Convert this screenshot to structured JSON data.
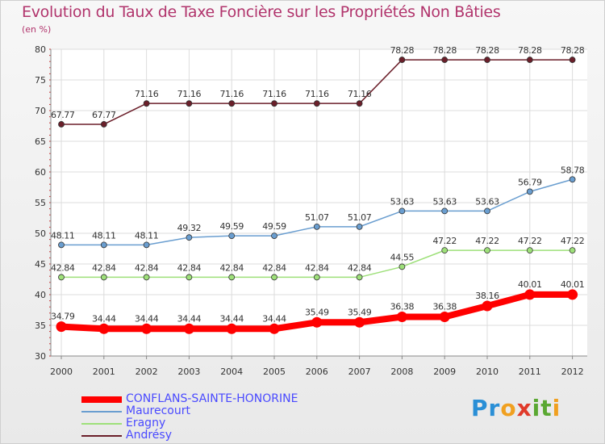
{
  "title": "Evolution du Taux de Taxe Foncière sur les Propriétés Non Bâties",
  "subtitle": "(en %)",
  "logo": {
    "text": "Proxiti",
    "letters": [
      {
        "char": "P",
        "color": "#2a8fd6"
      },
      {
        "char": "r",
        "color": "#2a8fd6"
      },
      {
        "char": "o",
        "color": "#f0a020"
      },
      {
        "char": "x",
        "color": "#e03a2a"
      },
      {
        "char": "i",
        "color": "#5aa832"
      },
      {
        "char": "t",
        "color": "#5aa832"
      },
      {
        "char": "i",
        "color": "#f0a020"
      }
    ]
  },
  "chart_data": {
    "type": "line",
    "title": "Evolution du Taux de Taxe Foncière sur les Propriétés Non Bâties",
    "ylabel": "(en %)",
    "xlabel": "",
    "x": [
      "2000",
      "2001",
      "2002",
      "2003",
      "2004",
      "2005",
      "2006",
      "2007",
      "2008",
      "2009",
      "2010",
      "2011",
      "2012"
    ],
    "ylim": [
      30,
      80
    ],
    "yticks": [
      "30",
      "35",
      "40",
      "45",
      "50",
      "55",
      "60",
      "65",
      "70",
      "75",
      "80"
    ],
    "grid": true,
    "legend_position": "bottom-left",
    "series": [
      {
        "name": "Andrésy",
        "color": "#6b1f2a",
        "values": [
          67.77,
          67.77,
          71.16,
          71.16,
          71.16,
          71.16,
          71.16,
          71.16,
          78.28,
          78.28,
          78.28,
          78.28,
          78.28
        ],
        "labels": [
          "67.77",
          "67.77",
          "71.16",
          "71.16",
          "71.16",
          "71.16",
          "71.16",
          "71.16",
          "78.28",
          "78.28",
          "78.28",
          "78.28",
          "78.28"
        ]
      },
      {
        "name": "Maurecourt",
        "color": "#6a9ed0",
        "values": [
          48.11,
          48.11,
          48.11,
          49.32,
          49.59,
          49.59,
          51.07,
          51.07,
          53.63,
          53.63,
          53.63,
          56.79,
          58.78
        ],
        "labels": [
          "48.11",
          "48.11",
          "48.11",
          "49.32",
          "49.59",
          "49.59",
          "51.07",
          "51.07",
          "53.63",
          "53.63",
          "53.63",
          "56.79",
          "58.78"
        ]
      },
      {
        "name": "Eragny",
        "color": "#9ee07a",
        "values": [
          42.84,
          42.84,
          42.84,
          42.84,
          42.84,
          42.84,
          42.84,
          42.84,
          44.55,
          47.22,
          47.22,
          47.22,
          47.22
        ],
        "labels": [
          "42.84",
          "42.84",
          "42.84",
          "42.84",
          "42.84",
          "42.84",
          "42.84",
          "42.84",
          "44.55",
          "47.22",
          "47.22",
          "47.22",
          "47.22"
        ]
      },
      {
        "name": "CONFLANS-SAINTE-HONORINE",
        "color": "#ff0000",
        "values": [
          34.79,
          34.44,
          34.44,
          34.44,
          34.44,
          34.44,
          35.49,
          35.49,
          36.38,
          36.38,
          38.16,
          40.01,
          40.01
        ],
        "labels": [
          "34.79",
          "34.44",
          "34.44",
          "34.44",
          "34.44",
          "34.44",
          "35.49",
          "35.49",
          "36.38",
          "36.38",
          "38.16",
          "40.01",
          "40.01"
        ]
      }
    ],
    "legend": [
      {
        "name": "CONFLANS-SAINTE-HONORINE",
        "color": "#ff0000",
        "text_color": "#4a4aff"
      },
      {
        "name": "Maurecourt",
        "color": "#6a9ed0",
        "text_color": "#4a4aff"
      },
      {
        "name": "Eragny",
        "color": "#9ee07a",
        "text_color": "#4a4aff"
      },
      {
        "name": "Andrésy",
        "color": "#6b1f2a",
        "text_color": "#4a4aff"
      }
    ]
  }
}
